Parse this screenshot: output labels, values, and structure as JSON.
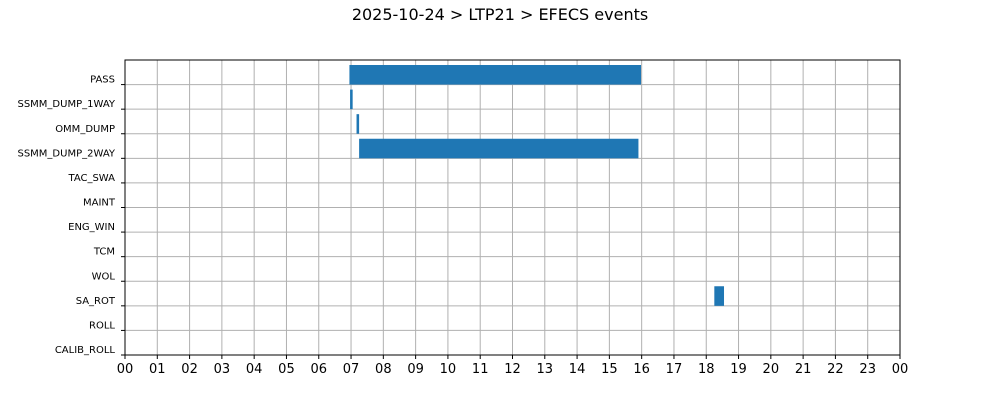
{
  "chart_data": {
    "type": "gantt",
    "title": "2025-10-24 > LTP21 > EFECS events",
    "xlabel": "",
    "ylabel": "",
    "xlim": [
      0,
      24
    ],
    "x_ticks": [
      "00",
      "01",
      "02",
      "03",
      "04",
      "05",
      "06",
      "07",
      "08",
      "09",
      "10",
      "11",
      "12",
      "13",
      "14",
      "15",
      "16",
      "17",
      "18",
      "19",
      "20",
      "21",
      "22",
      "23",
      "00"
    ],
    "grid": true,
    "bar_color": "#1f77b4",
    "categories": [
      "PASS",
      "SSMM_DUMP_1WAY",
      "OMM_DUMP",
      "SSMM_DUMP_2WAY",
      "TAC_SWA",
      "MAINT",
      "ENG_WIN",
      "TCM",
      "WOL",
      "SA_ROT",
      "ROLL",
      "CALIB_ROLL"
    ],
    "events": [
      {
        "category": "PASS",
        "start": 6.95,
        "end": 15.98
      },
      {
        "category": "SSMM_DUMP_1WAY",
        "start": 6.97,
        "end": 7.05
      },
      {
        "category": "OMM_DUMP",
        "start": 7.17,
        "end": 7.25
      },
      {
        "category": "SSMM_DUMP_2WAY",
        "start": 7.25,
        "end": 15.9
      },
      {
        "category": "SA_ROT",
        "start": 18.25,
        "end": 18.55
      }
    ]
  }
}
